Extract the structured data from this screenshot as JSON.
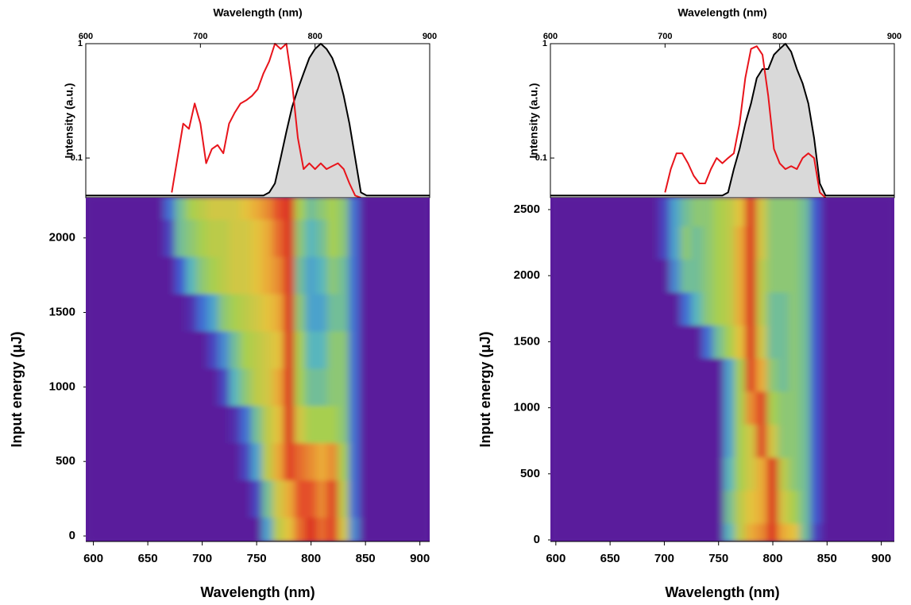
{
  "chart_data": [
    {
      "type": "line",
      "xlabel": "Wavelength (nm)",
      "ylabel": "Intensity (a.u.)",
      "ylog": true,
      "xaxis": "top",
      "xlim": [
        600,
        900
      ],
      "xticks": [
        600,
        700,
        800,
        900
      ],
      "ylim": [
        0.045,
        1
      ],
      "yticks": [
        0.1,
        1
      ],
      "x": [
        600,
        605,
        610,
        615,
        620,
        625,
        630,
        635,
        640,
        645,
        650,
        655,
        660,
        665,
        670,
        675,
        680,
        685,
        690,
        695,
        700,
        705,
        710,
        715,
        720,
        725,
        730,
        735,
        740,
        745,
        750,
        755,
        760,
        765,
        770,
        775,
        780,
        785,
        790,
        795,
        800,
        805,
        810,
        815,
        820,
        825,
        830,
        835,
        840,
        845,
        850,
        855,
        860,
        865,
        870,
        875,
        880,
        885,
        890,
        895,
        900
      ],
      "series": [
        {
          "color": "#000000",
          "fill": "#d9d9d9",
          "values": [
            0.047,
            0.047,
            0.047,
            0.047,
            0.047,
            0.047,
            0.047,
            0.047,
            0.047,
            0.047,
            0.047,
            0.047,
            0.047,
            0.047,
            0.047,
            0.047,
            0.047,
            0.047,
            0.047,
            0.047,
            0.047,
            0.047,
            0.047,
            0.047,
            0.047,
            0.047,
            0.047,
            0.047,
            0.047,
            0.047,
            0.047,
            0.047,
            0.05,
            0.06,
            0.1,
            0.17,
            0.28,
            0.4,
            0.55,
            0.75,
            0.9,
            1,
            0.9,
            0.75,
            0.55,
            0.35,
            0.2,
            0.1,
            0.05,
            0.047,
            0.047,
            0.047,
            0.047,
            0.047,
            0.047,
            0.047,
            0.047,
            0.047,
            0.047,
            0.047,
            0.047
          ]
        },
        {
          "color": "#e8141b",
          "values": [
            null,
            null,
            null,
            null,
            null,
            null,
            null,
            null,
            null,
            null,
            null,
            null,
            null,
            null,
            null,
            0.05,
            0.1,
            0.2,
            0.18,
            0.3,
            0.2,
            0.09,
            0.12,
            0.13,
            0.11,
            0.2,
            0.25,
            0.3,
            0.32,
            0.35,
            0.4,
            0.55,
            0.7,
            1,
            0.9,
            1,
            0.45,
            0.15,
            0.08,
            0.09,
            0.08,
            0.09,
            0.08,
            0.085,
            0.09,
            0.08,
            0.06,
            0.047,
            0.045,
            null,
            null,
            null,
            null,
            null,
            null,
            null,
            null,
            null,
            null,
            null,
            null
          ]
        }
      ]
    },
    {
      "type": "heatmap",
      "xlabel": "Wavelength (nm)",
      "ylabel": "Input energy (μJ)",
      "xlim": [
        593,
        909
      ],
      "xticks": [
        600,
        650,
        700,
        750,
        800,
        850,
        900
      ],
      "ylim": [
        -37,
        2270
      ],
      "yticks": [
        0,
        500,
        1000,
        1500,
        2000
      ],
      "zlim": [
        0,
        1
      ],
      "colormap": [
        "#5a1c9c",
        "#3d5cd6",
        "#4fb3c9",
        "#a7cf4f",
        "#ebc23c",
        "#e5562a",
        "#d81e1e"
      ],
      "x": [
        600,
        610,
        620,
        630,
        640,
        650,
        660,
        670,
        680,
        690,
        700,
        710,
        720,
        730,
        740,
        750,
        760,
        770,
        780,
        790,
        800,
        810,
        820,
        830,
        840,
        850,
        860,
        870,
        880,
        890,
        900
      ],
      "y": [
        0,
        250,
        500,
        750,
        1000,
        1250,
        1500,
        1750,
        2000,
        2250
      ],
      "z": [
        [
          0,
          0,
          0,
          0,
          0,
          0,
          0,
          0,
          0,
          0,
          0,
          0,
          0,
          0,
          0,
          0,
          0.3,
          0.55,
          0.65,
          0.8,
          0.95,
          0.8,
          0.9,
          0.6,
          0.25,
          0,
          0,
          0,
          0,
          0,
          0
        ],
        [
          0,
          0,
          0,
          0,
          0,
          0,
          0,
          0,
          0,
          0,
          0,
          0,
          0,
          0,
          0,
          0.1,
          0.4,
          0.6,
          0.7,
          0.85,
          0.85,
          0.75,
          0.9,
          0.55,
          0.2,
          0,
          0,
          0,
          0,
          0,
          0
        ],
        [
          0,
          0,
          0,
          0,
          0,
          0,
          0,
          0,
          0,
          0,
          0,
          0,
          0,
          0,
          0.1,
          0.3,
          0.55,
          0.7,
          0.9,
          0.8,
          0.75,
          0.7,
          0.75,
          0.5,
          0.2,
          0,
          0,
          0,
          0,
          0,
          0
        ],
        [
          0,
          0,
          0,
          0,
          0,
          0,
          0,
          0,
          0,
          0,
          0,
          0,
          0,
          0.05,
          0.2,
          0.4,
          0.55,
          0.65,
          0.95,
          0.6,
          0.5,
          0.5,
          0.5,
          0.45,
          0.2,
          0,
          0,
          0,
          0,
          0,
          0
        ],
        [
          0,
          0,
          0,
          0,
          0,
          0,
          0,
          0,
          0,
          0,
          0,
          0,
          0.1,
          0.35,
          0.45,
          0.55,
          0.6,
          0.7,
          0.95,
          0.5,
          0.4,
          0.4,
          0.45,
          0.45,
          0.2,
          0,
          0,
          0,
          0,
          0,
          0
        ],
        [
          0,
          0,
          0,
          0,
          0,
          0,
          0,
          0,
          0,
          0,
          0,
          0.1,
          0.25,
          0.4,
          0.5,
          0.55,
          0.6,
          0.65,
          0.95,
          0.5,
          0.35,
          0.35,
          0.45,
          0.45,
          0.2,
          0,
          0,
          0,
          0,
          0,
          0
        ],
        [
          0,
          0,
          0,
          0,
          0,
          0,
          0,
          0,
          0,
          0.05,
          0.2,
          0.3,
          0.45,
          0.5,
          0.55,
          0.6,
          0.65,
          0.7,
          0.95,
          0.45,
          0.3,
          0.3,
          0.4,
          0.4,
          0.2,
          0,
          0,
          0,
          0,
          0,
          0
        ],
        [
          0,
          0,
          0,
          0,
          0,
          0,
          0,
          0,
          0.15,
          0.35,
          0.45,
          0.5,
          0.55,
          0.6,
          0.6,
          0.65,
          0.7,
          0.75,
          0.95,
          0.4,
          0.3,
          0.35,
          0.45,
          0.4,
          0.2,
          0,
          0,
          0,
          0,
          0,
          0
        ],
        [
          0,
          0,
          0,
          0,
          0,
          0,
          0,
          0.1,
          0.4,
          0.45,
          0.5,
          0.55,
          0.55,
          0.6,
          0.6,
          0.65,
          0.7,
          0.8,
          0.95,
          0.45,
          0.35,
          0.4,
          0.5,
          0.45,
          0.2,
          0,
          0,
          0,
          0,
          0,
          0
        ],
        [
          0,
          0,
          0,
          0,
          0,
          0,
          0,
          0.2,
          0.4,
          0.5,
          0.55,
          0.6,
          0.6,
          0.6,
          0.65,
          0.7,
          0.75,
          0.85,
          0.95,
          0.5,
          0.4,
          0.45,
          0.5,
          0.45,
          0.2,
          0,
          0,
          0,
          0,
          0,
          0
        ]
      ]
    },
    {
      "type": "line",
      "xlabel": "Wavelength (nm)",
      "ylabel": "Intensity (a.u.)",
      "ylog": true,
      "xaxis": "top",
      "xlim": [
        600,
        900
      ],
      "xticks": [
        600,
        700,
        800,
        900
      ],
      "ylim": [
        0.045,
        1
      ],
      "yticks": [
        0.1,
        1
      ],
      "x": [
        600,
        605,
        610,
        615,
        620,
        625,
        630,
        635,
        640,
        645,
        650,
        655,
        660,
        665,
        670,
        675,
        680,
        685,
        690,
        695,
        700,
        705,
        710,
        715,
        720,
        725,
        730,
        735,
        740,
        745,
        750,
        755,
        760,
        765,
        770,
        775,
        780,
        785,
        790,
        795,
        800,
        805,
        810,
        815,
        820,
        825,
        830,
        835,
        840,
        845,
        850,
        855,
        860,
        865,
        870,
        875,
        880,
        885,
        890,
        895,
        900
      ],
      "series": [
        {
          "color": "#000000",
          "fill": "#d9d9d9",
          "values": [
            0.047,
            0.047,
            0.047,
            0.047,
            0.047,
            0.047,
            0.047,
            0.047,
            0.047,
            0.047,
            0.047,
            0.047,
            0.047,
            0.047,
            0.047,
            0.047,
            0.047,
            0.047,
            0.047,
            0.047,
            0.047,
            0.047,
            0.047,
            0.047,
            0.047,
            0.047,
            0.047,
            0.047,
            0.047,
            0.047,
            0.047,
            0.05,
            0.08,
            0.12,
            0.2,
            0.3,
            0.5,
            0.6,
            0.6,
            0.8,
            0.9,
            1,
            0.85,
            0.6,
            0.45,
            0.3,
            0.15,
            0.06,
            0.047,
            0.047,
            0.047,
            0.047,
            0.047,
            0.047,
            0.047,
            0.047,
            0.047,
            0.047,
            0.047,
            0.047,
            0.047
          ]
        },
        {
          "color": "#e8141b",
          "values": [
            null,
            null,
            null,
            null,
            null,
            null,
            null,
            null,
            null,
            null,
            null,
            null,
            null,
            null,
            null,
            null,
            null,
            null,
            null,
            null,
            0.05,
            0.08,
            0.11,
            0.11,
            0.09,
            0.07,
            0.06,
            0.06,
            0.08,
            0.1,
            0.09,
            0.1,
            0.11,
            0.2,
            0.5,
            0.9,
            0.95,
            0.8,
            0.35,
            0.12,
            0.09,
            0.08,
            0.085,
            0.08,
            0.1,
            0.11,
            0.1,
            0.05,
            0.045,
            null,
            null,
            null,
            null,
            null,
            null,
            null,
            null,
            null,
            null,
            null,
            null
          ]
        }
      ]
    },
    {
      "type": "heatmap",
      "xlabel": "Wavelength (nm)",
      "ylabel": "Input energy (μJ)",
      "xlim": [
        595,
        912
      ],
      "xticks": [
        600,
        650,
        700,
        750,
        800,
        850,
        900
      ],
      "ylim": [
        -12,
        2590
      ],
      "yticks": [
        0,
        500,
        1000,
        1500,
        2000,
        2500
      ],
      "zlim": [
        0,
        1
      ],
      "colormap": [
        "#5a1c9c",
        "#3d5cd6",
        "#4fb3c9",
        "#a7cf4f",
        "#ebc23c",
        "#e5562a",
        "#d81e1e"
      ],
      "x": [
        600,
        610,
        620,
        630,
        640,
        650,
        660,
        670,
        680,
        690,
        700,
        710,
        720,
        730,
        740,
        750,
        760,
        770,
        780,
        790,
        800,
        810,
        820,
        830,
        840,
        850,
        860,
        870,
        880,
        890,
        900
      ],
      "y": [
        0,
        250,
        500,
        750,
        1000,
        1250,
        1500,
        1750,
        2000,
        2250,
        2500
      ],
      "z": [
        [
          0,
          0,
          0,
          0,
          0,
          0,
          0,
          0,
          0,
          0,
          0,
          0,
          0,
          0,
          0,
          0,
          0.35,
          0.55,
          0.7,
          0.75,
          0.95,
          0.7,
          0.65,
          0.4,
          0.1,
          0,
          0,
          0,
          0,
          0,
          0
        ],
        [
          0,
          0,
          0,
          0,
          0,
          0,
          0,
          0,
          0,
          0,
          0,
          0,
          0,
          0,
          0,
          0,
          0.4,
          0.55,
          0.65,
          0.7,
          0.95,
          0.6,
          0.5,
          0.4,
          0.15,
          0,
          0,
          0,
          0,
          0,
          0
        ],
        [
          0,
          0,
          0,
          0,
          0,
          0,
          0,
          0,
          0,
          0,
          0,
          0,
          0,
          0,
          0,
          0,
          0.35,
          0.5,
          0.6,
          0.7,
          0.95,
          0.55,
          0.45,
          0.4,
          0.15,
          0,
          0,
          0,
          0,
          0,
          0
        ],
        [
          0,
          0,
          0,
          0,
          0,
          0,
          0,
          0,
          0,
          0,
          0,
          0,
          0,
          0,
          0,
          0,
          0.3,
          0.5,
          0.6,
          0.9,
          0.6,
          0.45,
          0.45,
          0.4,
          0.15,
          0,
          0,
          0,
          0,
          0,
          0
        ],
        [
          0,
          0,
          0,
          0,
          0,
          0,
          0,
          0,
          0,
          0,
          0,
          0,
          0,
          0,
          0,
          0,
          0.3,
          0.5,
          0.75,
          0.9,
          0.5,
          0.45,
          0.45,
          0.4,
          0.15,
          0,
          0,
          0,
          0,
          0,
          0
        ],
        [
          0,
          0,
          0,
          0,
          0,
          0,
          0,
          0,
          0,
          0,
          0,
          0,
          0,
          0,
          0,
          0,
          0.3,
          0.5,
          0.9,
          0.7,
          0.45,
          0.4,
          0.45,
          0.4,
          0.15,
          0,
          0,
          0,
          0,
          0,
          0
        ],
        [
          0,
          0,
          0,
          0,
          0,
          0,
          0,
          0,
          0,
          0,
          0,
          0,
          0,
          0,
          0.2,
          0.4,
          0.5,
          0.65,
          0.95,
          0.6,
          0.4,
          0.4,
          0.45,
          0.4,
          0.15,
          0,
          0,
          0,
          0,
          0,
          0
        ],
        [
          0,
          0,
          0,
          0,
          0,
          0,
          0,
          0,
          0,
          0,
          0,
          0,
          0.2,
          0.35,
          0.45,
          0.5,
          0.55,
          0.7,
          0.95,
          0.55,
          0.4,
          0.4,
          0.45,
          0.4,
          0.15,
          0,
          0,
          0,
          0,
          0,
          0
        ],
        [
          0,
          0,
          0,
          0,
          0,
          0,
          0,
          0,
          0,
          0,
          0,
          0.25,
          0.4,
          0.4,
          0.45,
          0.5,
          0.55,
          0.7,
          0.95,
          0.55,
          0.45,
          0.45,
          0.45,
          0.4,
          0.15,
          0,
          0,
          0,
          0,
          0,
          0
        ],
        [
          0,
          0,
          0,
          0,
          0,
          0,
          0,
          0,
          0,
          0,
          0.1,
          0.3,
          0.45,
          0.4,
          0.45,
          0.5,
          0.55,
          0.7,
          0.95,
          0.6,
          0.45,
          0.45,
          0.45,
          0.4,
          0.15,
          0,
          0,
          0,
          0,
          0,
          0
        ],
        [
          0,
          0,
          0,
          0,
          0,
          0,
          0,
          0,
          0,
          0,
          0.1,
          0.3,
          0.4,
          0.45,
          0.45,
          0.5,
          0.55,
          0.65,
          0.95,
          0.6,
          0.45,
          0.45,
          0.45,
          0.4,
          0.15,
          0,
          0,
          0,
          0,
          0,
          0
        ]
      ]
    }
  ]
}
